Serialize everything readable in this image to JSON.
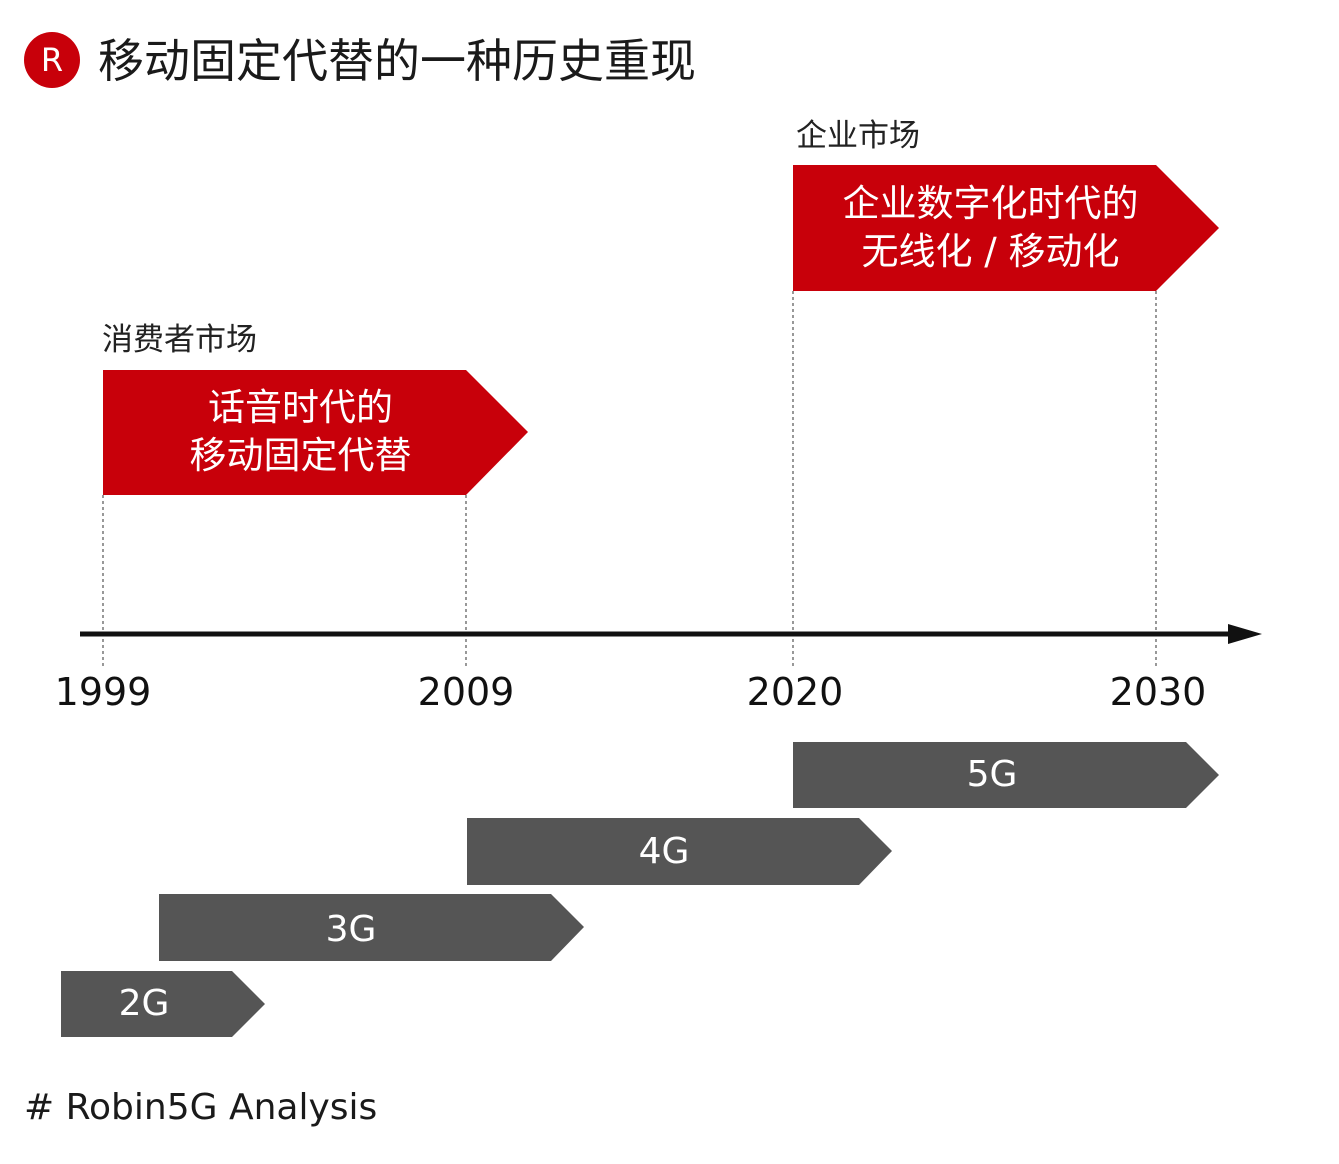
{
  "header": {
    "logo_letter": "R",
    "title": "移动固定代替的一种历史重现"
  },
  "markets": {
    "consumer": {
      "label": "消费者市场",
      "arrow_line1": "话音时代的",
      "arrow_line2": "移动固定代替"
    },
    "enterprise": {
      "label": "企业市场",
      "arrow_line1": "企业数字化时代的",
      "arrow_line2": "无线化 / 移动化"
    }
  },
  "timeline": {
    "years": [
      "1999",
      "2009",
      "2020",
      "2030"
    ]
  },
  "generations": [
    "2G",
    "3G",
    "4G",
    "5G"
  ],
  "footer": "# Robin5G Analysis",
  "colors": {
    "accent_red": "#c8000a",
    "bar_gray": "#555555",
    "axis": "#111111"
  }
}
